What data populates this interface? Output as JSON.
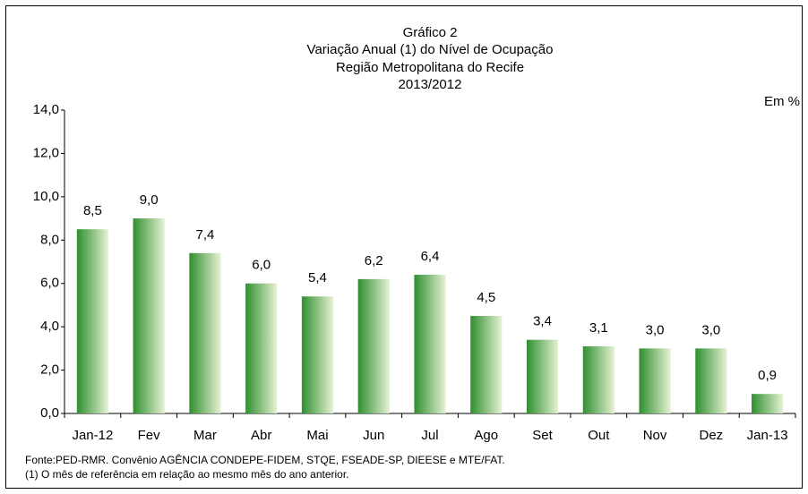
{
  "chart_data": {
    "type": "bar",
    "title": [
      "Gráfico 2",
      "Variação Anual (1) do Nível de Ocupação",
      "Região Metropolitana do Recife",
      "2013/2012"
    ],
    "unit_label": "Em %",
    "categories": [
      "Jan-12",
      "Fev",
      "Mar",
      "Abr",
      "Mai",
      "Jun",
      "Jul",
      "Ago",
      "Set",
      "Out",
      "Nov",
      "Dez",
      "Jan-13"
    ],
    "values": [
      8.5,
      9.0,
      7.4,
      6.0,
      5.4,
      6.2,
      6.4,
      4.5,
      3.4,
      3.1,
      3.0,
      3.0,
      0.9
    ],
    "value_labels": [
      "8,5",
      "9,0",
      "7,4",
      "6,0",
      "5,4",
      "6,2",
      "6,4",
      "4,5",
      "3,4",
      "3,1",
      "3,0",
      "3,0",
      "0,9"
    ],
    "color": "#2f8f2f",
    "ylim": [
      0,
      14
    ],
    "yticks": [
      {
        "value": 0,
        "label": "0,0"
      },
      {
        "value": 2,
        "label": "2,0"
      },
      {
        "value": 4,
        "label": "4,0"
      },
      {
        "value": 6,
        "label": "6,0"
      },
      {
        "value": 8,
        "label": "8,0"
      },
      {
        "value": 10,
        "label": "10,0"
      },
      {
        "value": 12,
        "label": "12,0"
      },
      {
        "value": 14,
        "label": "14,0"
      }
    ],
    "grid": false,
    "notes": [
      "Fonte:PED-RMR. Convênio AGÊNCIA CONDEPE-FIDEM, STQE, FSEADE-SP, DIEESE e MTE/FAT.",
      "(1) O mês de referência em relação ao mesmo mês do ano anterior."
    ]
  }
}
